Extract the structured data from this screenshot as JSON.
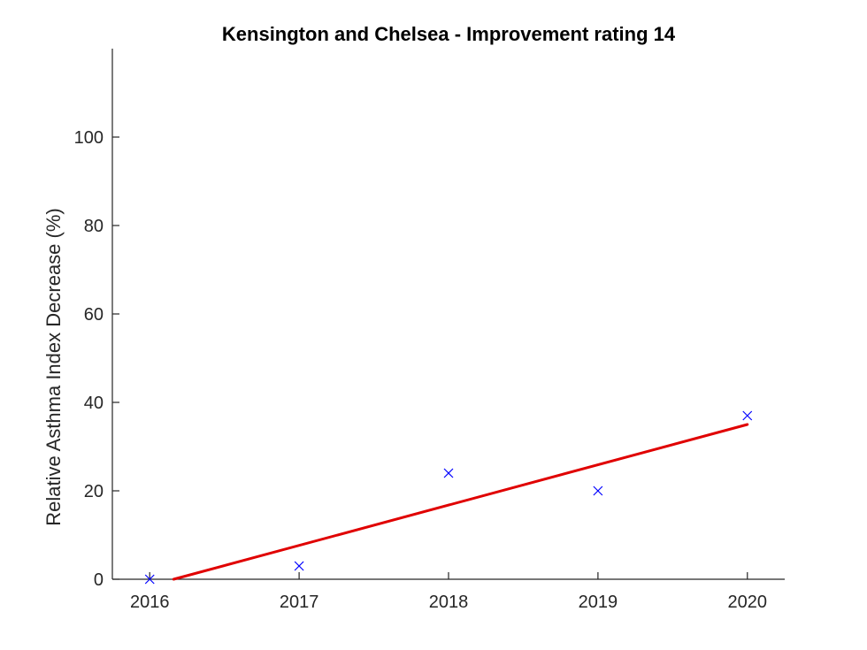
{
  "chart_data": {
    "type": "scatter",
    "title": "Kensington and Chelsea - Improvement rating 14",
    "xlabel": "",
    "ylabel": "Relative Asthma Index Decrease (%)",
    "x": [
      2016,
      2017,
      2018,
      2019,
      2020
    ],
    "y": [
      0,
      3,
      24,
      20,
      37
    ],
    "xlim": [
      2015.75,
      2020.25
    ],
    "ylim": [
      0,
      120
    ],
    "xticks": [
      2016,
      2017,
      2018,
      2019,
      2020
    ],
    "yticks": [
      0,
      20,
      40,
      60,
      80,
      100
    ],
    "marker": "x",
    "marker_color": "#0000ff",
    "trend_line": {
      "color": "#e00000",
      "x": [
        2016.16,
        2020
      ],
      "y": [
        0,
        35
      ]
    },
    "grid": false,
    "axis_color": "#262626"
  }
}
